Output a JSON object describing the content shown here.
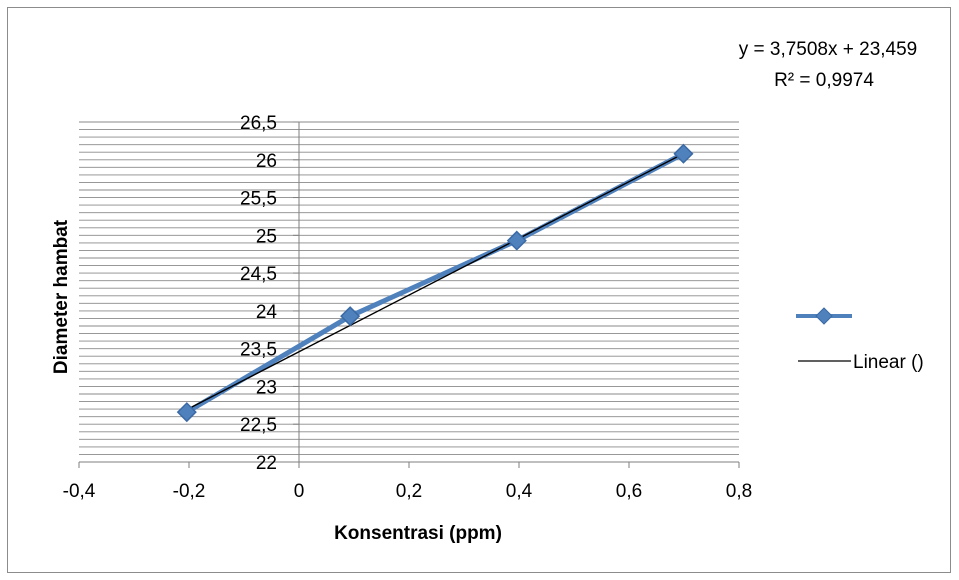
{
  "chart_data": {
    "type": "scatter",
    "title": "",
    "xlabel": "Konsentrasi  (ppm)",
    "ylabel": "Diameter hambat",
    "xlim": [
      -0.4,
      0.8
    ],
    "ylim": [
      22,
      26.5
    ],
    "x_ticks": [
      "-0,4",
      "-0,2",
      "0",
      "0,2",
      "0,4",
      "0,6",
      "0,8"
    ],
    "x_tick_values": [
      -0.4,
      -0.2,
      0,
      0.2,
      0.4,
      0.6,
      0.8
    ],
    "y_ticks": [
      "22",
      "22,5",
      "23",
      "23,5",
      "24",
      "24,5",
      "25",
      "25,5",
      "26",
      "26,5"
    ],
    "y_tick_values": [
      22,
      22.5,
      23,
      23.5,
      24,
      24.5,
      25,
      25.5,
      26,
      26.5
    ],
    "minor_gridline_step": 0.1,
    "series": [
      {
        "name": "",
        "color": "#4f81bd",
        "marker": "diamond",
        "x": [
          -0.204,
          0.093,
          0.396,
          0.699
        ],
        "y": [
          22.66,
          23.93,
          24.93,
          26.08
        ]
      }
    ],
    "trendline": {
      "legend_label": "Linear ()",
      "color": "#000000",
      "slope": 3.7508,
      "intercept": 23.459,
      "equation_text": "y = 3,7508x + 23,459",
      "r2_text": "R² = 0,9974"
    },
    "legend_position": "right",
    "grid": true
  }
}
